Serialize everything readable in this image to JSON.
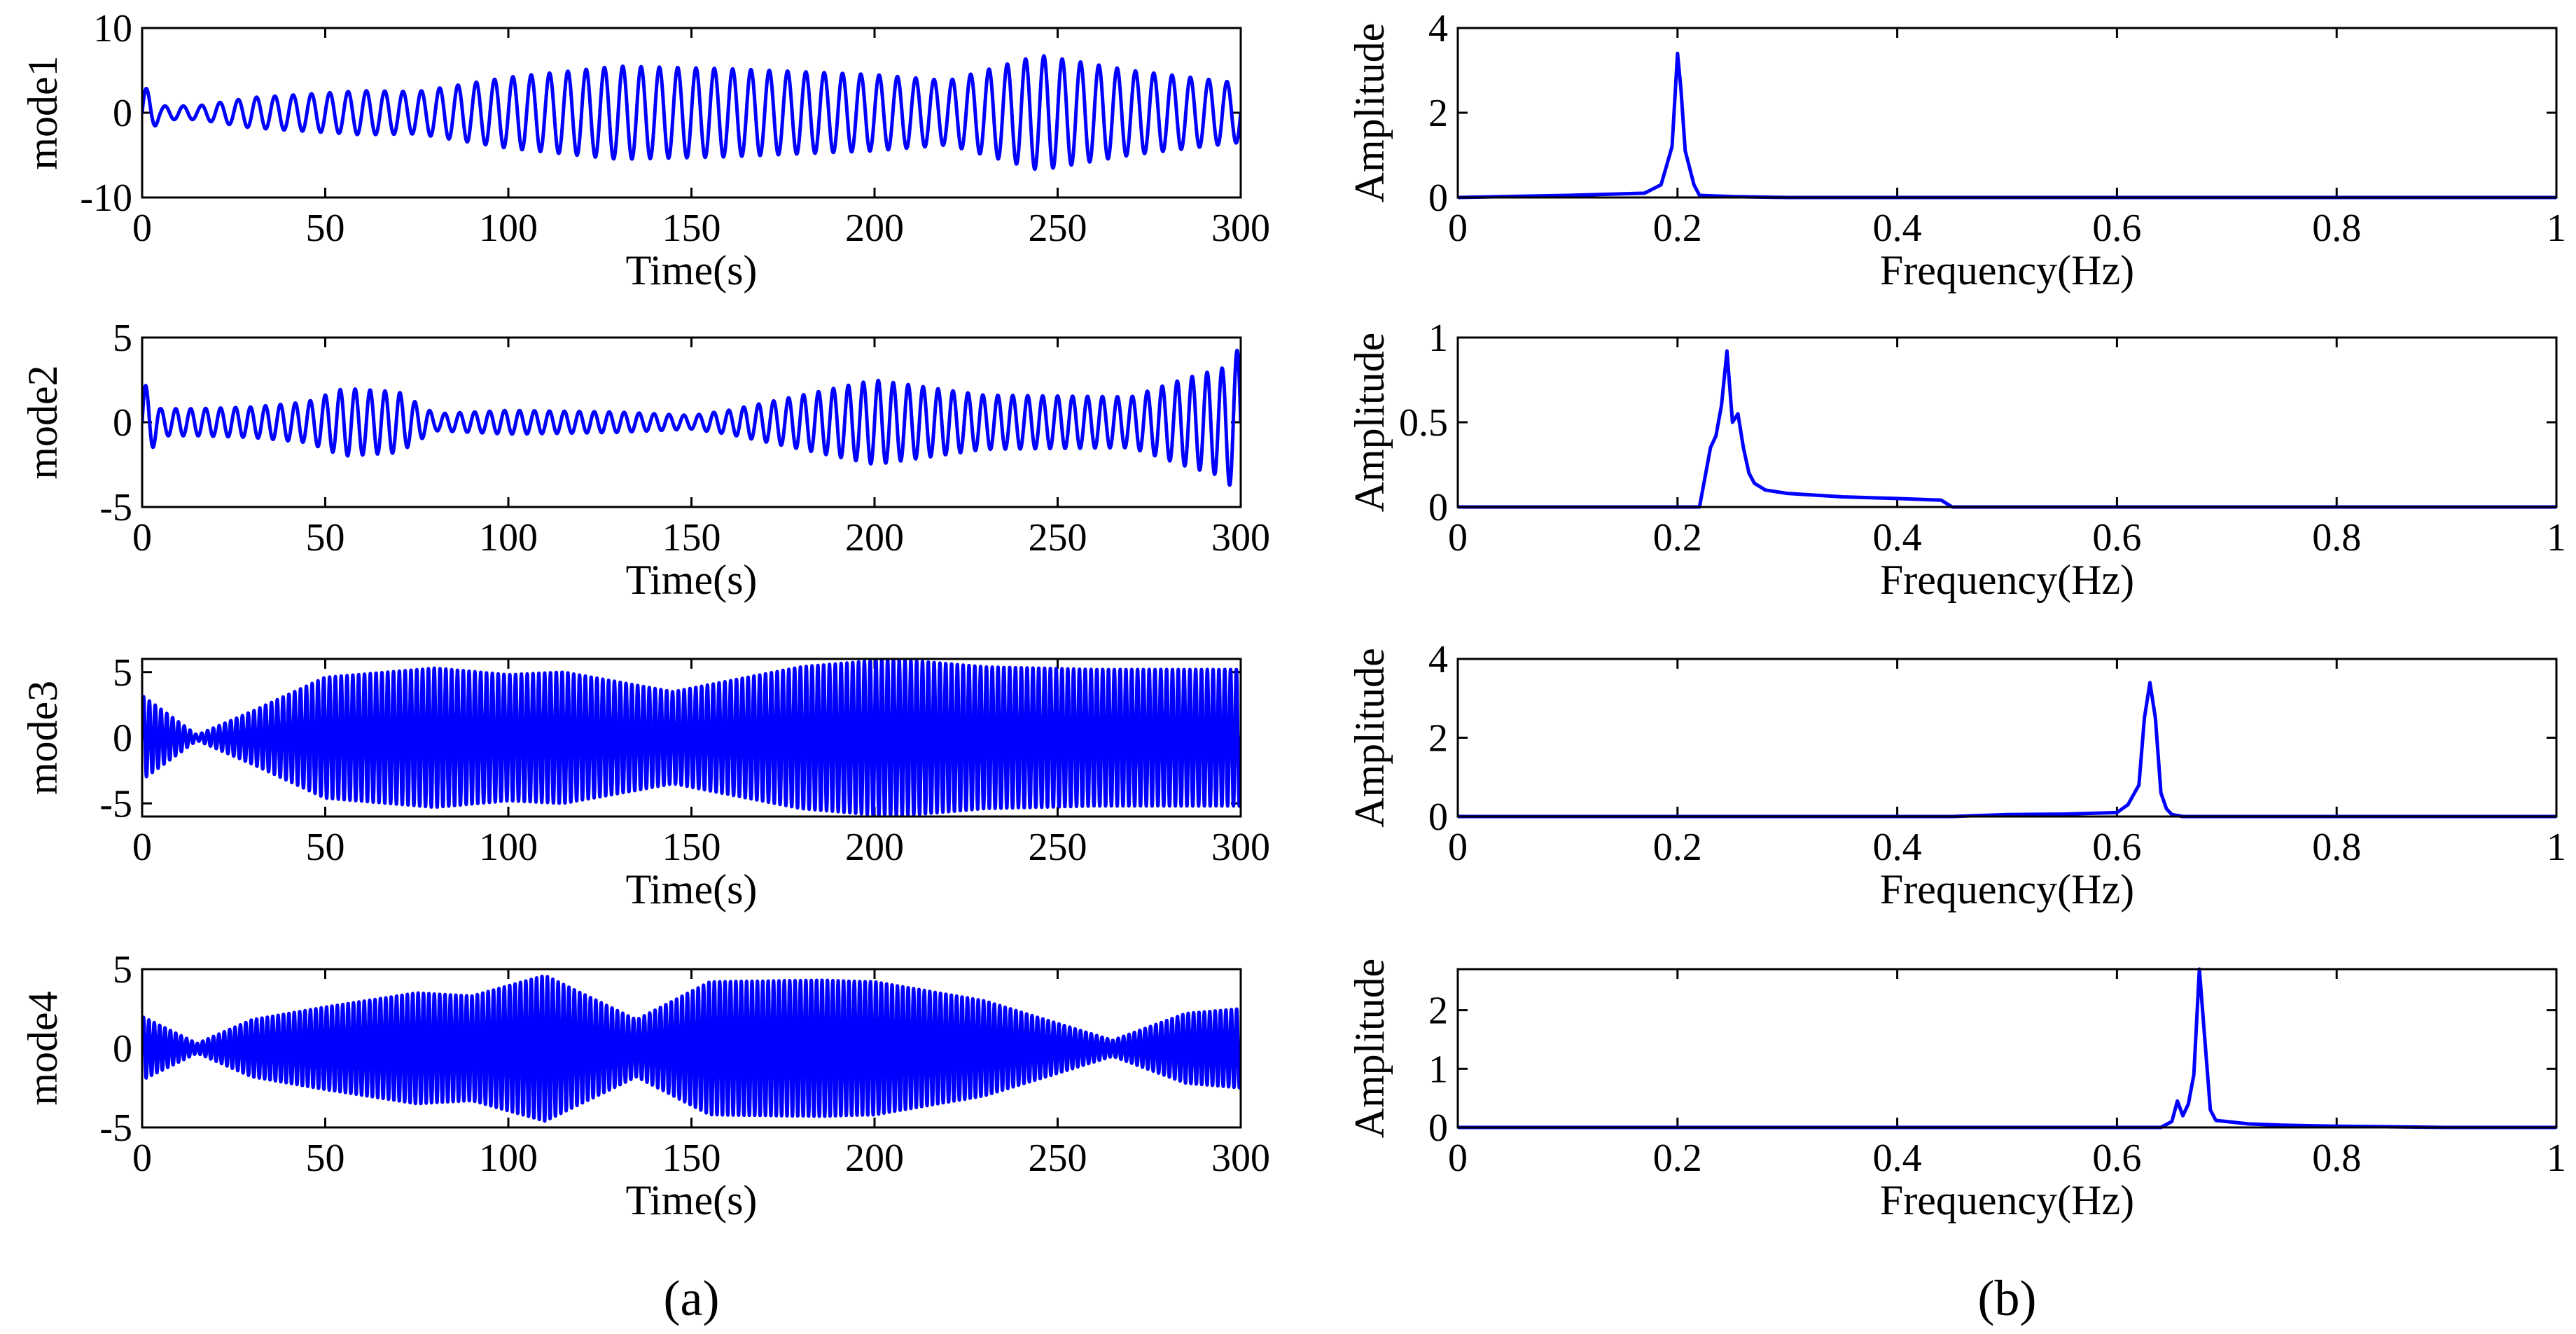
{
  "chart_data": {
    "type": "line",
    "panel_labels": [
      "(a)",
      "(b)"
    ],
    "line_color": "#0000ff",
    "time_plots": [
      {
        "ylabel": "mode1",
        "xlabel": "Time(s)",
        "xlim": [
          0,
          300
        ],
        "ylim": [
          -10,
          10
        ],
        "xticks": [
          "0",
          "50",
          "100",
          "150",
          "200",
          "250",
          "300"
        ],
        "yticks": [
          "10",
          "0",
          "-10"
        ],
        "frequency_hz": 0.2,
        "envelope": [
          [
            0,
            3.5
          ],
          [
            5,
            0.8
          ],
          [
            15,
            0.8
          ],
          [
            30,
            1.8
          ],
          [
            60,
            2.6
          ],
          [
            75,
            2.5
          ],
          [
            100,
            4.2
          ],
          [
            130,
            5.5
          ],
          [
            160,
            5.2
          ],
          [
            200,
            4.5
          ],
          [
            220,
            3.8
          ],
          [
            245,
            6.8
          ],
          [
            270,
            5.0
          ],
          [
            300,
            3.5
          ]
        ]
      },
      {
        "ylabel": "mode2",
        "xlabel": "Time(s)",
        "xlim": [
          0,
          300
        ],
        "ylim": [
          -5,
          5
        ],
        "xticks": [
          "0",
          "50",
          "100",
          "150",
          "200",
          "250",
          "300"
        ],
        "yticks": [
          "5",
          "0",
          "-5"
        ],
        "frequency_hz": 0.245,
        "envelope": [
          [
            0,
            2.5
          ],
          [
            5,
            0.8
          ],
          [
            15,
            0.8
          ],
          [
            30,
            0.9
          ],
          [
            45,
            1.2
          ],
          [
            55,
            2.0
          ],
          [
            70,
            1.8
          ],
          [
            80,
            0.5
          ],
          [
            100,
            0.7
          ],
          [
            130,
            0.6
          ],
          [
            150,
            0.4
          ],
          [
            160,
            0.7
          ],
          [
            200,
            2.5
          ],
          [
            230,
            1.6
          ],
          [
            270,
            1.5
          ],
          [
            285,
            2.6
          ],
          [
            295,
            3.2
          ],
          [
            300,
            4.5
          ]
        ]
      },
      {
        "ylabel": "mode3",
        "xlabel": "Time(s)",
        "xlim": [
          0,
          300
        ],
        "ylim": [
          -6,
          6
        ],
        "xticks": [
          "0",
          "50",
          "100",
          "150",
          "200",
          "250",
          "300"
        ],
        "yticks": [
          "5",
          "0",
          "-5"
        ],
        "frequency_hz": 0.63,
        "envelope": [
          [
            0,
            3.2
          ],
          [
            15,
            0.2
          ],
          [
            30,
            2.0
          ],
          [
            50,
            4.6
          ],
          [
            80,
            5.3
          ],
          [
            100,
            4.8
          ],
          [
            115,
            5.0
          ],
          [
            145,
            3.5
          ],
          [
            180,
            5.4
          ],
          [
            205,
            6.0
          ],
          [
            230,
            5.4
          ],
          [
            260,
            5.2
          ],
          [
            300,
            5.2
          ]
        ]
      },
      {
        "ylabel": "mode4",
        "xlabel": "Time(s)",
        "xlim": [
          0,
          300
        ],
        "ylim": [
          -5,
          5
        ],
        "xticks": [
          "0",
          "50",
          "100",
          "150",
          "200",
          "250",
          "300"
        ],
        "yticks": [
          "5",
          "0",
          "-5"
        ],
        "frequency_hz": 0.68,
        "envelope": [
          [
            0,
            2.0
          ],
          [
            15,
            0.3
          ],
          [
            30,
            1.8
          ],
          [
            50,
            2.6
          ],
          [
            75,
            3.5
          ],
          [
            90,
            3.3
          ],
          [
            110,
            4.6
          ],
          [
            135,
            1.8
          ],
          [
            155,
            4.2
          ],
          [
            185,
            4.3
          ],
          [
            200,
            4.2
          ],
          [
            230,
            3.0
          ],
          [
            265,
            0.5
          ],
          [
            285,
            2.2
          ],
          [
            300,
            2.5
          ]
        ]
      }
    ],
    "spectrum_plots": [
      {
        "ylabel": "Amplitude",
        "xlabel": "Frequency(Hz)",
        "xlim": [
          0,
          1
        ],
        "ylim": [
          0,
          4
        ],
        "xticks": [
          "0",
          "0.2",
          "0.4",
          "0.6",
          "0.8",
          "1"
        ],
        "yticks": [
          "4",
          "2",
          "0"
        ],
        "x": [
          0,
          0.1,
          0.14,
          0.17,
          0.185,
          0.195,
          0.2,
          0.203,
          0.207,
          0.21,
          0.215,
          0.22,
          0.25,
          0.3,
          1.0
        ],
        "y": [
          0,
          0.05,
          0.08,
          0.1,
          0.3,
          1.2,
          3.4,
          2.6,
          1.1,
          0.8,
          0.3,
          0.05,
          0.02,
          0,
          0
        ]
      },
      {
        "ylabel": "Amplitude",
        "xlabel": "Frequency(Hz)",
        "xlim": [
          0,
          1
        ],
        "ylim": [
          0,
          1
        ],
        "xticks": [
          "0",
          "0.2",
          "0.4",
          "0.6",
          "0.8",
          "1"
        ],
        "yticks": [
          "1",
          "0.5",
          "0"
        ],
        "x": [
          0,
          0.22,
          0.23,
          0.235,
          0.24,
          0.245,
          0.25,
          0.255,
          0.26,
          0.265,
          0.27,
          0.28,
          0.3,
          0.35,
          0.4,
          0.44,
          0.45,
          1.0
        ],
        "y": [
          0,
          0,
          0.35,
          0.42,
          0.6,
          0.92,
          0.5,
          0.55,
          0.35,
          0.2,
          0.14,
          0.1,
          0.08,
          0.06,
          0.05,
          0.04,
          0,
          0
        ]
      },
      {
        "ylabel": "Amplitude",
        "xlabel": "Frequency(Hz)",
        "xlim": [
          0,
          1
        ],
        "ylim": [
          0,
          4
        ],
        "xticks": [
          "0",
          "0.2",
          "0.4",
          "0.6",
          "0.8",
          "1"
        ],
        "yticks": [
          "4",
          "2",
          "0"
        ],
        "x": [
          0,
          0.45,
          0.5,
          0.55,
          0.6,
          0.61,
          0.62,
          0.625,
          0.63,
          0.635,
          0.64,
          0.645,
          0.65,
          0.66,
          1.0
        ],
        "y": [
          0,
          0,
          0.05,
          0.06,
          0.1,
          0.3,
          0.8,
          2.5,
          3.4,
          2.5,
          0.6,
          0.2,
          0.05,
          0,
          0
        ]
      },
      {
        "ylabel": "Amplitude",
        "xlabel": "Frequency(Hz)",
        "xlim": [
          0,
          1
        ],
        "ylim": [
          0,
          2.7
        ],
        "xticks": [
          "0",
          "0.2",
          "0.4",
          "0.6",
          "0.8",
          "1"
        ],
        "yticks": [
          "2",
          "1",
          "0"
        ],
        "x": [
          0,
          0.64,
          0.65,
          0.655,
          0.66,
          0.665,
          0.67,
          0.675,
          0.68,
          0.685,
          0.69,
          0.7,
          0.72,
          0.75,
          0.8,
          0.9,
          1.0
        ],
        "y": [
          0,
          0,
          0.1,
          0.45,
          0.2,
          0.4,
          0.9,
          2.7,
          1.5,
          0.3,
          0.12,
          0.1,
          0.06,
          0.04,
          0.02,
          0,
          0
        ]
      }
    ]
  }
}
